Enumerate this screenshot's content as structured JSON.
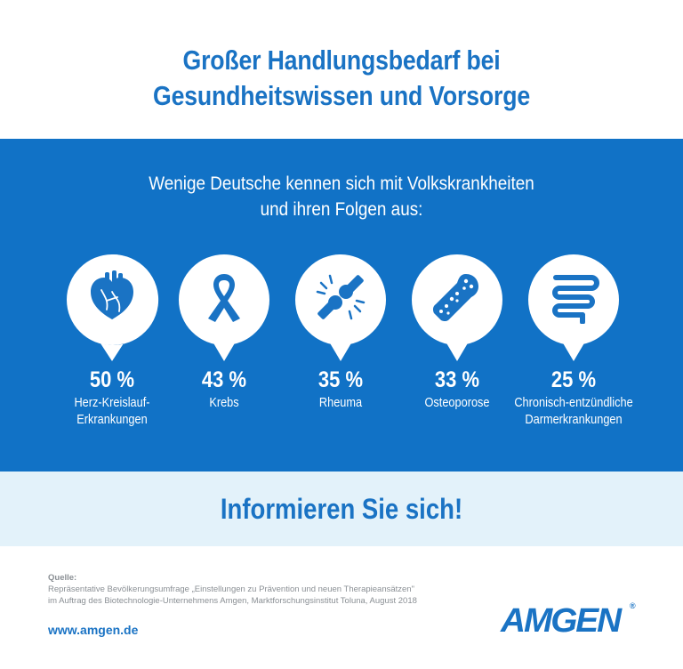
{
  "header": {
    "title_line1": "Großer Handlungsbedarf bei",
    "title_line2": "Gesundheitswissen und Vorsorge"
  },
  "band": {
    "subtitle_line1": "Wenige Deutsche kennen sich mit Volkskrankheiten",
    "subtitle_line2": "und ihren Folgen aus:",
    "background_color": "#1172c6",
    "items": [
      {
        "icon": "heart-icon",
        "percent": "50 %",
        "label_line1": "Herz-Kreislauf-",
        "label_line2": "Erkrankungen"
      },
      {
        "icon": "ribbon-icon",
        "percent": "43 %",
        "label_line1": "Krebs",
        "label_line2": ""
      },
      {
        "icon": "joint-icon",
        "percent": "35 %",
        "label_line1": "Rheuma",
        "label_line2": ""
      },
      {
        "icon": "bone-icon",
        "percent": "33 %",
        "label_line1": "Osteoporose",
        "label_line2": ""
      },
      {
        "icon": "intestine-icon",
        "percent": "25 %",
        "label_line1": "Chronisch-entzündliche",
        "label_line2": "Darmerkrankungen"
      }
    ]
  },
  "cta": {
    "text": "Informieren Sie sich!"
  },
  "source": {
    "heading": "Quelle:",
    "line1": "Repräsentative Bevölkerungsumfrage „Einstellungen zu Prävention und neuen Therapieansätzen\"",
    "line2": "im Auftrag des Biotechnologie-Unternehmens Amgen, Marktforschungsinstitut Toluna, August 2018"
  },
  "footer": {
    "url": "www.amgen.de",
    "logo_text": "AMGEN",
    "logo_mark": "®"
  },
  "colors": {
    "brand_blue": "#1a73c4",
    "light_band": "#e3f2fa"
  }
}
